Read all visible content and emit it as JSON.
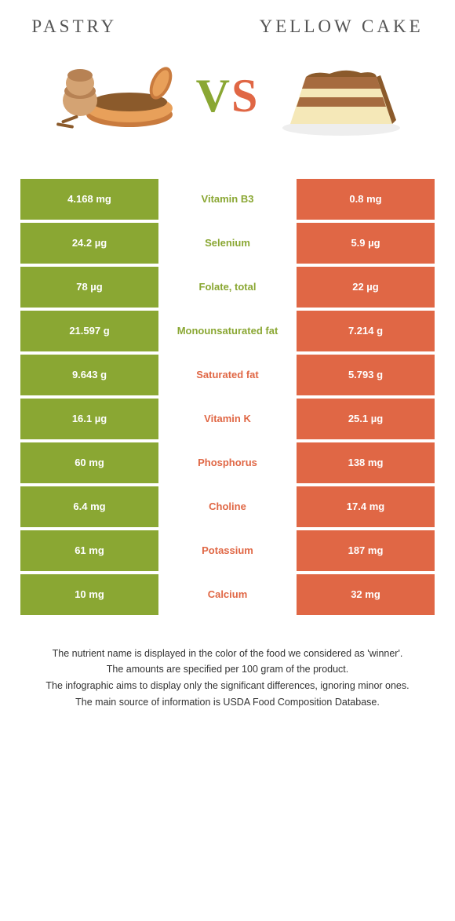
{
  "header": {
    "left_title": "Pastry",
    "right_title": "Yellow cake"
  },
  "vs": {
    "v": "V",
    "s": "S"
  },
  "colors": {
    "green": "#8aa733",
    "orange": "#e06745",
    "text": "#333333",
    "bg": "#ffffff"
  },
  "table": {
    "rows": [
      {
        "left": "4.168 mg",
        "mid": "Vitamin B3",
        "right": "0.8 mg",
        "winner": "left"
      },
      {
        "left": "24.2 µg",
        "mid": "Selenium",
        "right": "5.9 µg",
        "winner": "left"
      },
      {
        "left": "78 µg",
        "mid": "Folate, total",
        "right": "22 µg",
        "winner": "left"
      },
      {
        "left": "21.597 g",
        "mid": "Monounsaturated fat",
        "right": "7.214 g",
        "winner": "left"
      },
      {
        "left": "9.643 g",
        "mid": "Saturated fat",
        "right": "5.793 g",
        "winner": "right"
      },
      {
        "left": "16.1 µg",
        "mid": "Vitamin K",
        "right": "25.1 µg",
        "winner": "right"
      },
      {
        "left": "60 mg",
        "mid": "Phosphorus",
        "right": "138 mg",
        "winner": "right"
      },
      {
        "left": "6.4 mg",
        "mid": "Choline",
        "right": "17.4 mg",
        "winner": "right"
      },
      {
        "left": "61 mg",
        "mid": "Potassium",
        "right": "187 mg",
        "winner": "right"
      },
      {
        "left": "10 mg",
        "mid": "Calcium",
        "right": "32 mg",
        "winner": "right"
      }
    ]
  },
  "notes": {
    "p1": "The nutrient name is displayed in the color of the food we considered as 'winner'.",
    "p2": "The amounts are specified per 100 gram of the product.",
    "p3": "The infographic aims to display only the significant differences, ignoring minor ones.",
    "p4": "The main source of information is USDA Food Composition Database."
  }
}
